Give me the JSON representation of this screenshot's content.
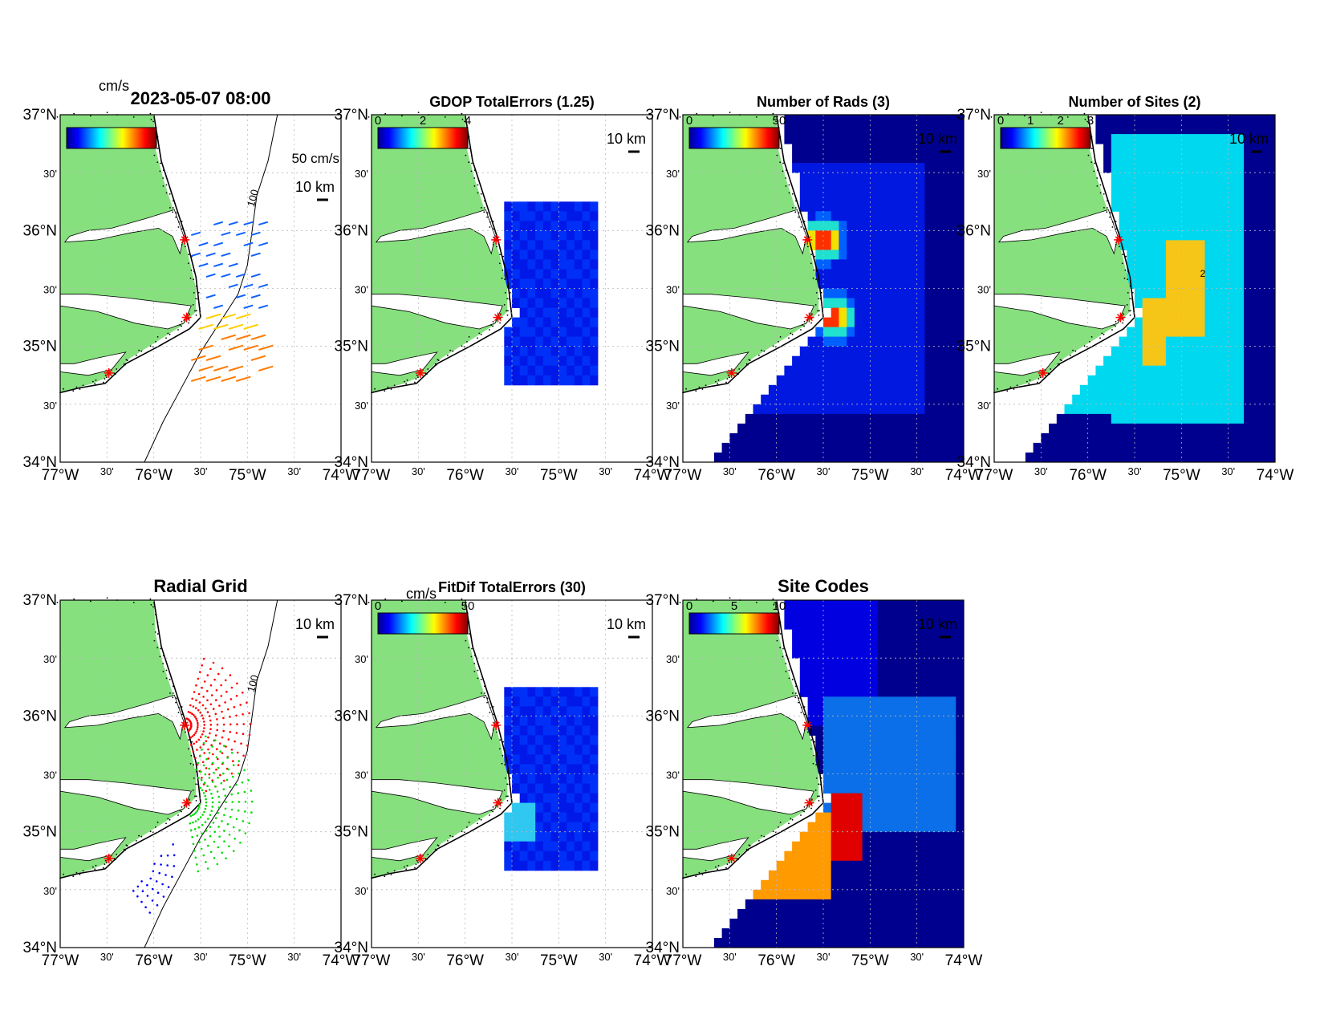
{
  "figure": {
    "timestamp": "2023-05-07 08:00"
  },
  "axes": {
    "lon_labels": [
      "77°W",
      "30'",
      "76°W",
      "30'",
      "75°W",
      "30'",
      "74°W"
    ],
    "lat_labels": [
      "34°N",
      "30'",
      "35°N",
      "30'",
      "36°N",
      "30'",
      "37°N"
    ],
    "lon_range": [
      -77,
      -74
    ],
    "lat_range": [
      34,
      37
    ]
  },
  "colors": {
    "land": "#86e07e",
    "ocean_fill": "#00008f",
    "site_marker": "#ff0000",
    "contour": "#000000"
  },
  "sites": [
    {
      "lon": -75.67,
      "lat": 35.92
    },
    {
      "lon": -75.65,
      "lat": 35.25
    },
    {
      "lon": -76.48,
      "lat": 34.77
    }
  ],
  "panels": [
    {
      "id": "totals",
      "title": "",
      "colorbar": {
        "unit": "cm/s",
        "ticks": []
      },
      "scale_label": "50 cm/s",
      "km_label": "10 km",
      "contour_label": "100"
    },
    {
      "id": "gdop",
      "title": "GDOP TotalErrors (1.25)",
      "colorbar": {
        "unit": "",
        "ticks": [
          "0",
          "2",
          "4"
        ]
      },
      "km_label": "10 km"
    },
    {
      "id": "nrads",
      "title": "Number of Rads (3)",
      "colorbar": {
        "unit": "",
        "ticks": [
          "0",
          "50"
        ]
      },
      "km_label": "10 km"
    },
    {
      "id": "nsites",
      "title": "Number of Sites (2)",
      "colorbar": {
        "unit": "",
        "ticks": [
          "0",
          "1",
          "2",
          "3"
        ]
      },
      "km_label": "10 km",
      "contour_label": "2"
    },
    {
      "id": "radgrid",
      "title": "Radial Grid",
      "km_label": "10 km",
      "contour_label": "100",
      "grid_colors": [
        "#ff0000",
        "#00dd00",
        "#0000ff"
      ]
    },
    {
      "id": "fitdif",
      "title": "FitDif TotalErrors (30)",
      "colorbar": {
        "unit": "cm/s",
        "ticks": [
          "0",
          "50"
        ]
      },
      "km_label": "10 km"
    },
    {
      "id": "sitecodes",
      "title": "Site Codes",
      "colorbar": {
        "unit": "",
        "ticks": [
          "0",
          "5",
          "10"
        ]
      },
      "km_label": "10 km"
    }
  ]
}
